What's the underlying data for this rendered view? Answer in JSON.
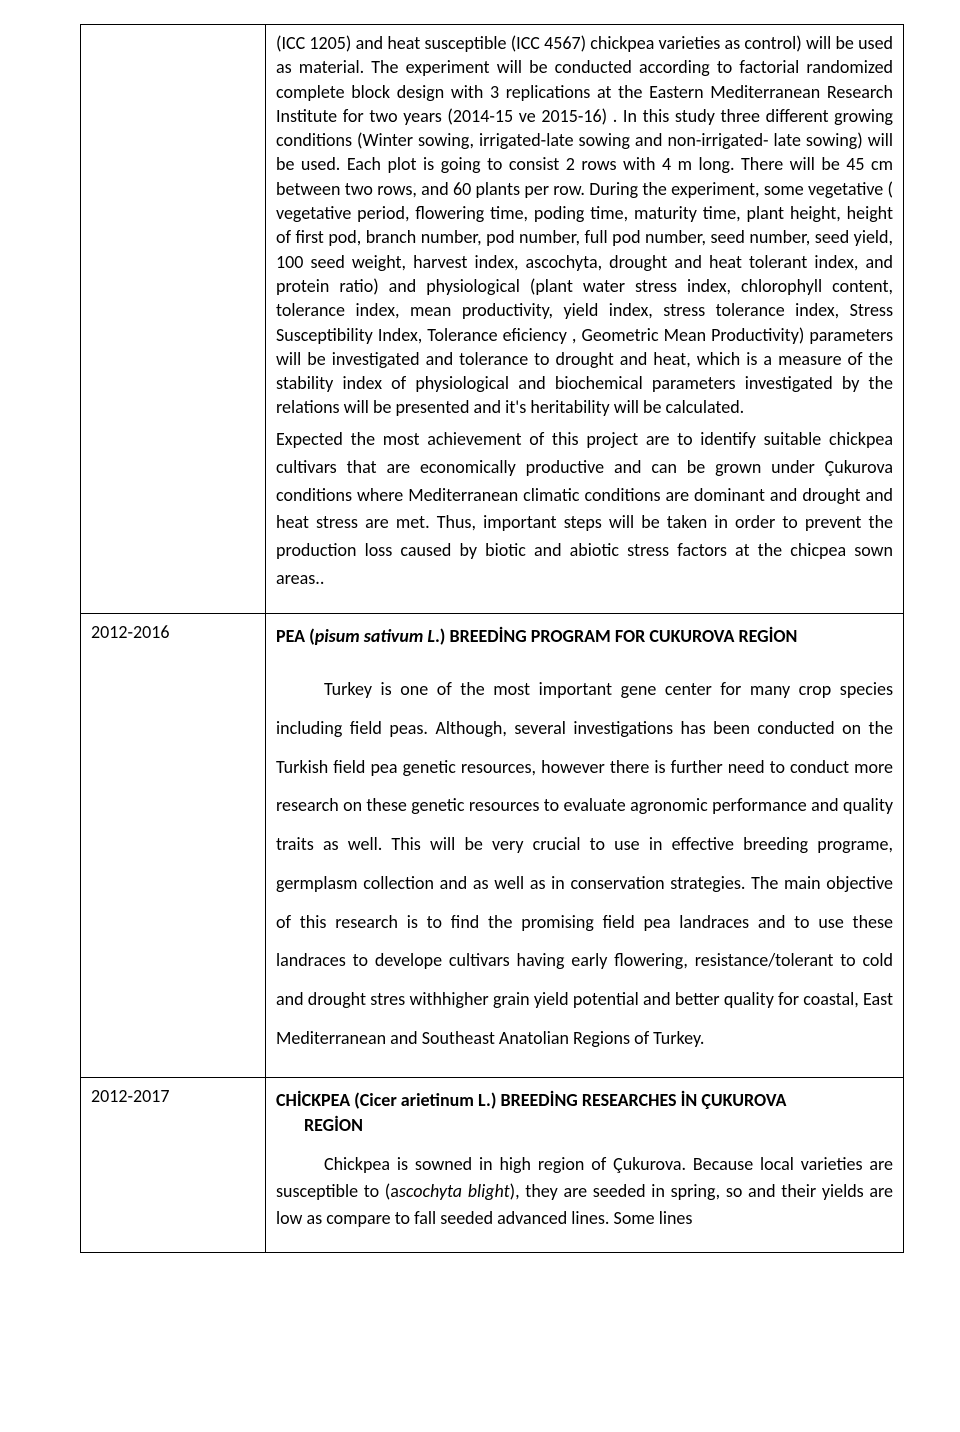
{
  "rows": [
    {
      "date": "",
      "body_paragraphs": [
        "(ICC 1205) and heat susceptible (ICC 4567) chickpea varieties as control) will be used as material. The experiment will be conducted according to  factorial randomized complete block design with 3 replications at the Eastern Mediterranean Research Institute for two years (2014-15 ve 2015-16) . In this study three different growing conditions (Winter sowing, irrigated-late sowing and non-irrigated- late sowing) will be used. Each plot is going to consist 2  rows with  4 m long. There will be 45 cm between two rows, and 60 plants per row. During the experiment, some vegetative ( vegetative period, flowering time, poding time, maturity time, plant height, height of first pod, branch number, pod number, full pod number, seed number, seed yield, 100 seed weight, harvest index, ascochyta, drought and heat tolerant index, and protein ratio) and physiological (plant water stress index, chlorophyll content, tolerance index, mean productivity, yield index, stress tolerance index, Stress Susceptibility Index, Tolerance eficiency , Geometric Mean Productivity) parameters will be investigated and tolerance to drought and heat, which is a measure of the stability index of physiological and biochemical parameters investigated by the relations will be presented and it's heritability will be calculated.",
        "Expected the most achievement of this project are to identify suitable chickpea cultivars that are economically productive and can be grown under Çukurova conditions where Mediterranean climatic conditions are dominant and drought and heat stress are met. Thus, important steps will be taken in order to prevent the production loss caused by biotic and abiotic stress factors at the chicpea sown areas.."
      ]
    },
    {
      "date": "2012-2016",
      "title_pre": "PEA  (",
      "title_ital": "pisum sativum L",
      "title_post": ".) BREEDİNG PROGRAM  FOR CUKUROVA REGİON",
      "body_paragraphs": [
        "Turkey is one of the most important gene center for many crop species including field peas. Although, several investigations has been conducted on the Turkish field pea genetic resources, however there is further need to conduct more research on these genetic resources to evaluate agronomic performance and quality traits as well. This will be very crucial to use in effective breeding programe, germplasm collection and as well as in conservation strategies. The main objective of this research is to find the promising field pea landraces and to use these landraces to develope cultivars having  early flowering, resistance/tolerant to cold and drought stres withhigher grain yield potential and better quality for coastal, East Mediterranean and Southeast Anatolian Regions of Turkey."
      ]
    },
    {
      "date": "2012-2017",
      "title_pre": "CHİCKPEA (",
      "title_ital": "Cicer arietinum L.)",
      "title_post": " BREEDİNG RESEARCHES İN ÇUKUROVA",
      "title_line2": "REGİON",
      "body_paragraphs": [
        "Chickpea is sowned in high region of Çukurova. Because local varieties are susceptible to (ascochyta blight), they are seeded in spring, so and their yields are low as compare to fall seeded advanced lines. Some lines"
      ]
    }
  ],
  "special": {
    "row3_body_pre": "Chickpea is sowned in high region of Çukurova. Because local varieties are susceptible to (a",
    "row3_body_ital": "scochyta blight",
    "row3_body_post": "), they are seeded in spring, so and their yields are low as compare to fall seeded advanced lines. Some lines"
  }
}
